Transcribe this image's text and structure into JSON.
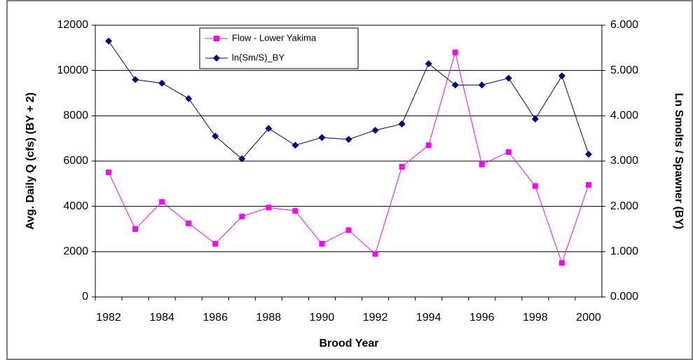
{
  "chart_data": {
    "type": "line",
    "categories": [
      "1982",
      null,
      "1984",
      null,
      "1986",
      null,
      "1988",
      null,
      "1990",
      null,
      "1992",
      null,
      "1994",
      null,
      "1996",
      null,
      "1998",
      null,
      "2000"
    ],
    "series": [
      {
        "name": "Flow - Lower Yakima",
        "color": "#ff00ff",
        "marker": "square",
        "values": [
          5500,
          3000,
          4200,
          3250,
          2350,
          3550,
          3950,
          3800,
          2350,
          2950,
          1900,
          5750,
          6700,
          10800,
          5850,
          6400,
          4900,
          1500,
          4950
        ]
      },
      {
        "name": "ln(Sm/S)_BY",
        "color": "#000080",
        "marker": "diamond",
        "axis": "y2",
        "values": [
          5.65,
          4.8,
          4.72,
          4.38,
          3.55,
          3.05,
          3.72,
          3.35,
          3.52,
          3.48,
          3.68,
          3.82,
          5.15,
          4.68,
          4.68,
          4.83,
          3.93,
          4.88,
          3.15
        ]
      }
    ],
    "xlabel": "Brood Year",
    "ylabel": "Avg. Daily Q (cfs) (BY + 2)",
    "y2label": "Ln Smolts / Spawner (BY)",
    "ylim": [
      0,
      12000
    ],
    "yticks": [
      0,
      2000,
      4000,
      6000,
      8000,
      10000,
      12000
    ],
    "y2lim": [
      0,
      6
    ],
    "y2ticks": [
      {
        "value": 0,
        "label": "0.000"
      },
      {
        "value": 1,
        "label": "1.000"
      },
      {
        "value": 2,
        "label": "2.000"
      },
      {
        "value": 3,
        "label": "3.000"
      },
      {
        "value": 4,
        "label": "4.000"
      },
      {
        "value": 5,
        "label": "5.000"
      },
      {
        "value": 6,
        "label": "6.000"
      }
    ],
    "grid": true,
    "legend": "top-left"
  }
}
